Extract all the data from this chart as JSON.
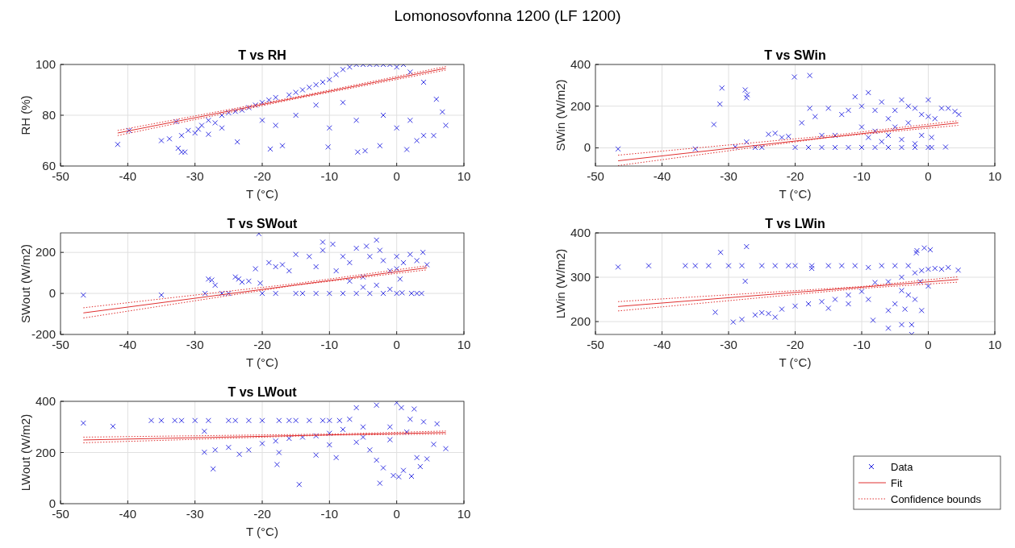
{
  "chart_data": [
    {
      "type": "scatter",
      "title": "T vs RH",
      "xlabel": "T (°C)",
      "ylabel": "RH (%)",
      "annotations": [
        "Lomonosovfonna 1200 (LF 1200)"
      ],
      "xlim": [
        -50,
        10
      ],
      "ylim": [
        60,
        100
      ],
      "xticks": [
        -50,
        -40,
        -30,
        -20,
        -10,
        0,
        10
      ],
      "yticks": [
        60,
        80,
        100
      ],
      "grid": true,
      "series": [
        {
          "marker": "cross",
          "color": "#2020e0",
          "x": [
            -41.5,
            -39.8,
            -35,
            -33.8,
            -32.5,
            -32,
            -31.5,
            -32.8,
            -32,
            -31,
            -30,
            -29,
            -28,
            -27,
            -26,
            -25,
            -24,
            -23.7,
            -23,
            -22,
            -21,
            -20,
            -19,
            -18.8,
            -18,
            -17,
            -16,
            -15,
            -14,
            -13,
            -12,
            -11,
            -10.2,
            -10,
            -9,
            -8,
            -7,
            -6,
            -5,
            -4,
            -3,
            -2,
            -1,
            0,
            1,
            2,
            -5.8,
            -4.7,
            -2.5,
            1.5,
            3,
            4,
            5.5,
            6.8,
            7.3,
            5.9,
            4,
            -8,
            -12,
            -15,
            -20,
            -6,
            -2,
            0,
            2,
            -10,
            -18,
            -26,
            -28,
            -29.5
          ],
          "values": [
            68.5,
            74,
            70,
            70.7,
            67,
            65.5,
            65.5,
            77.5,
            72,
            74,
            73,
            76,
            78,
            77,
            80,
            81,
            81.5,
            69.5,
            82,
            83,
            84,
            85,
            86,
            66.7,
            87,
            68,
            88,
            89,
            90,
            91,
            92,
            93,
            67.5,
            94,
            96,
            98,
            99,
            100,
            100,
            100,
            100,
            100,
            100,
            99,
            100,
            97,
            65.5,
            66,
            68,
            66.5,
            70,
            72,
            72,
            81.3,
            76,
            86.3,
            93,
            85,
            84,
            80,
            78,
            78,
            80,
            75,
            78,
            75,
            76,
            75,
            72.5,
            74.5
          ]
        },
        {
          "type": "line",
          "line_style": "solid",
          "color": "#e03030",
          "x": [
            -41.5,
            7.3
          ],
          "values": [
            73,
            98.5
          ]
        },
        {
          "type": "line",
          "line_style": "dotted",
          "color": "#e03030",
          "x": [
            -41.5,
            -15,
            7.3
          ],
          "values": [
            74,
            87.2,
            99.2
          ]
        },
        {
          "type": "line",
          "line_style": "dotted",
          "color": "#e03030",
          "x": [
            -41.5,
            -15,
            7.3
          ],
          "values": [
            72,
            86.5,
            97.8
          ]
        }
      ]
    },
    {
      "type": "scatter",
      "title": "T vs SWin",
      "xlabel": "T (°C)",
      "ylabel": "SWin (W/m2)",
      "xlim": [
        -50,
        10
      ],
      "ylim": [
        -87,
        400
      ],
      "xticks": [
        -50,
        -40,
        -30,
        -20,
        -10,
        0,
        10
      ],
      "yticks": [
        0,
        200,
        400
      ],
      "grid": true,
      "series": [
        {
          "marker": "cross",
          "color": "#2020e0",
          "x": [
            -46.6,
            -35,
            -32.2,
            -31.3,
            -31,
            -27.5,
            -27.3,
            -27.2,
            -27.3,
            -29,
            -26,
            -25,
            -24,
            -23,
            -22,
            -21,
            -20.1,
            -17.8,
            -20,
            -18,
            -16,
            -14,
            -12,
            -10,
            -8,
            -6,
            -4,
            -2,
            0,
            0.5,
            2.6,
            -17.8,
            -19,
            -17,
            -15,
            -13,
            -12,
            -11,
            -10,
            -9,
            -8,
            -7,
            -6,
            -5,
            -4,
            -3,
            -2,
            -1,
            0,
            0,
            1,
            2,
            3,
            4,
            4.6,
            -16,
            -14,
            -10,
            -8,
            -6,
            -4,
            -2,
            -1,
            0.5,
            -7,
            -3,
            -5,
            -9
          ],
          "values": [
            -5,
            -5,
            112,
            210,
            287,
            278,
            240,
            255,
            28,
            5,
            2,
            2,
            65,
            70,
            50,
            55,
            340,
            347,
            2,
            2,
            2,
            2,
            2,
            2,
            2,
            2,
            2,
            2,
            2,
            2,
            4,
            190,
            120,
            150,
            190,
            160,
            180,
            245,
            200,
            265,
            180,
            220,
            140,
            180,
            230,
            200,
            190,
            160,
            230,
            150,
            140,
            190,
            190,
            175,
            160,
            60,
            60,
            100,
            80,
            60,
            40,
            20,
            60,
            50,
            30,
            120,
            100,
            50
          ]
        },
        {
          "type": "line",
          "line_style": "solid",
          "color": "#e03030",
          "x": [
            -46.6,
            4.5
          ],
          "values": [
            -62,
            120
          ]
        },
        {
          "type": "line",
          "line_style": "dotted",
          "color": "#e03030",
          "x": [
            -46.6,
            -15,
            4.5
          ],
          "values": [
            -35,
            58,
            130
          ]
        },
        {
          "type": "line",
          "line_style": "dotted",
          "color": "#e03030",
          "x": [
            -46.6,
            -15,
            4.5
          ],
          "values": [
            -85,
            50,
            108
          ]
        }
      ]
    },
    {
      "type": "scatter",
      "title": "T vs SWout",
      "xlabel": "T (°C)",
      "ylabel": "SWout (W/m2)",
      "xlim": [
        -50,
        10
      ],
      "ylim": [
        -200,
        295
      ],
      "xticks": [
        -50,
        -40,
        -30,
        -20,
        -10,
        0,
        10
      ],
      "yticks": [
        -200,
        0,
        200
      ],
      "grid": true,
      "series": [
        {
          "marker": "cross",
          "color": "#2020e0",
          "x": [
            -46.6,
            -35,
            -28.5,
            -28,
            -27.5,
            -27,
            -26,
            -25,
            -24,
            -23.5,
            -23,
            -22,
            -21,
            -20.5,
            -20.3,
            -20,
            -19,
            -18,
            -17,
            -16,
            -15,
            -14,
            -13,
            -12,
            -11,
            -11,
            -10,
            -9.5,
            -9,
            -8,
            -7,
            -6,
            -5,
            -4.5,
            -4,
            -3,
            -2.5,
            -2,
            -1,
            0,
            0,
            0.5,
            1,
            2,
            3,
            3.9,
            4.5,
            -8,
            -6,
            -4,
            -2,
            0,
            0.8,
            2.2,
            3,
            3.7,
            -15,
            -18,
            -12,
            -5,
            -7,
            -3,
            -1
          ],
          "values": [
            -8,
            -8,
            0,
            70,
            65,
            40,
            0,
            0,
            80,
            70,
            55,
            60,
            120,
            292,
            50,
            0,
            150,
            130,
            140,
            110,
            190,
            0,
            180,
            130,
            250,
            210,
            0,
            240,
            110,
            180,
            150,
            220,
            80,
            230,
            180,
            260,
            210,
            160,
            110,
            180,
            120,
            70,
            150,
            190,
            160,
            200,
            140,
            0,
            0,
            0,
            0,
            0,
            3,
            0,
            0,
            0,
            0,
            0,
            0,
            30,
            60,
            40,
            20
          ]
        },
        {
          "type": "line",
          "line_style": "solid",
          "color": "#e03030",
          "x": [
            -46.6,
            4.5
          ],
          "values": [
            -95,
            125
          ]
        },
        {
          "type": "line",
          "line_style": "dotted",
          "color": "#e03030",
          "x": [
            -46.6,
            -15,
            4.5
          ],
          "values": [
            -70,
            48,
            135
          ]
        },
        {
          "type": "line",
          "line_style": "dotted",
          "color": "#e03030",
          "x": [
            -46.6,
            -15,
            4.5
          ],
          "values": [
            -120,
            40,
            115
          ]
        }
      ]
    },
    {
      "type": "scatter",
      "title": "T vs LWin",
      "xlabel": "T (°C)",
      "ylabel": "LWin (W/m2)",
      "xlim": [
        -50,
        10
      ],
      "ylim": [
        171,
        400
      ],
      "xticks": [
        -50,
        -40,
        -30,
        -20,
        -10,
        0,
        10
      ],
      "yticks": [
        200,
        300,
        400
      ],
      "grid": true,
      "series": [
        {
          "marker": "cross",
          "color": "#2020e0",
          "x": [
            -46.6,
            -42,
            -36.5,
            -35,
            -33,
            -31.2,
            -30,
            -28,
            -27.3,
            -27.5,
            -32,
            -29.3,
            -28,
            -26,
            -25,
            -24,
            -23,
            -22,
            -20,
            -18,
            -16,
            -14,
            -12,
            -10,
            -8,
            -6,
            -4,
            -2,
            -1,
            0,
            1,
            2,
            3,
            4.5,
            -25,
            -23,
            -21,
            -20,
            -17.5,
            -17.5,
            -15,
            -13,
            -11,
            -9,
            -7,
            -5,
            -3,
            -1.8,
            -1.7,
            -0.6,
            0.3,
            0,
            -8.3,
            -6,
            -4,
            -3.5,
            -2.5,
            -2.5,
            -1,
            -5,
            -3,
            -6,
            -2,
            -12,
            -9,
            -15,
            -4,
            -1.2
          ],
          "values": [
            323,
            326,
            326,
            326,
            326,
            356,
            326,
            326,
            369,
            291,
            221,
            199,
            205,
            215,
            220,
            218,
            210,
            228,
            235,
            240,
            245,
            250,
            260,
            268,
            288,
            290,
            300,
            310,
            315,
            318,
            320,
            318,
            322,
            316,
            326,
            326,
            326,
            326,
            326,
            320,
            326,
            326,
            326,
            322,
            326,
            326,
            326,
            355,
            360,
            366,
            362,
            280,
            203,
            185,
            193,
            228,
            193,
            171,
            225,
            240,
            260,
            225,
            250,
            240,
            250,
            230,
            270,
            290
          ]
        },
        {
          "type": "line",
          "line_style": "solid",
          "color": "#e03030",
          "x": [
            -46.6,
            4.5
          ],
          "values": [
            234,
            295
          ]
        },
        {
          "type": "line",
          "line_style": "dotted",
          "color": "#e03030",
          "x": [
            -46.6,
            -10,
            4.5
          ],
          "values": [
            245,
            279,
            301
          ]
        },
        {
          "type": "line",
          "line_style": "dotted",
          "color": "#e03030",
          "x": [
            -46.6,
            -10,
            4.5
          ],
          "values": [
            224,
            275,
            289
          ]
        }
      ]
    },
    {
      "type": "scatter",
      "title": "T vs LWout",
      "xlabel": "T (°C)",
      "ylabel": "LWout (W/m2)",
      "xlim": [
        -50,
        10
      ],
      "ylim": [
        0,
        400
      ],
      "xticks": [
        -50,
        -40,
        -30,
        -20,
        -10,
        0,
        10
      ],
      "yticks": [
        0,
        200,
        400
      ],
      "grid": true,
      "legend": "right",
      "series": [
        {
          "name": "Data",
          "marker": "cross",
          "color": "#2020e0",
          "x": [
            -46.6,
            -42.2,
            -36.5,
            -35,
            -33,
            -32,
            -30,
            -28,
            -25,
            -24,
            -22,
            -20,
            -17.5,
            -16,
            -15,
            -13,
            -11,
            -10,
            -8.5,
            -28.6,
            -28.6,
            -27.3,
            -27,
            -25,
            -23.4,
            -22,
            -20,
            -18,
            -17.8,
            -17.5,
            -16,
            -14.5,
            -14,
            -12,
            -12,
            -10,
            -9,
            -8,
            -7,
            -6,
            -5,
            -4,
            -3,
            -3,
            -2.5,
            -2,
            -1,
            -0.5,
            0,
            0.3,
            0.7,
            1,
            2,
            2.2,
            2.6,
            3,
            3.5,
            4,
            4.5,
            5.5,
            6,
            7.3,
            -5,
            -1,
            1.5,
            -6,
            -10
          ],
          "values": [
            315,
            302,
            325,
            325,
            325,
            325,
            325,
            325,
            325,
            325,
            325,
            325,
            325,
            325,
            325,
            325,
            325,
            325,
            325,
            283,
            201,
            136,
            210,
            220,
            193,
            210,
            235,
            245,
            153,
            200,
            255,
            75,
            260,
            265,
            190,
            275,
            180,
            290,
            330,
            375,
            300,
            210,
            385,
            170,
            80,
            140,
            300,
            110,
            395,
            105,
            375,
            130,
            330,
            107,
            370,
            180,
            145,
            320,
            175,
            232,
            312,
            215,
            260,
            250,
            280,
            240,
            230
          ]
        },
        {
          "type": "line",
          "name": "Fit",
          "line_style": "solid",
          "color": "#e03030",
          "x": [
            -46.6,
            7.3
          ],
          "values": [
            249,
            278
          ]
        },
        {
          "type": "line",
          "name": "Confidence bounds",
          "line_style": "dotted",
          "color": "#e03030",
          "x": [
            -46.6,
            -10,
            7.3
          ],
          "values": [
            260,
            272,
            284
          ]
        },
        {
          "type": "line",
          "line_style": "dotted",
          "color": "#e03030",
          "x": [
            -46.6,
            -10,
            7.3
          ],
          "values": [
            238,
            268,
            272
          ]
        }
      ]
    }
  ]
}
